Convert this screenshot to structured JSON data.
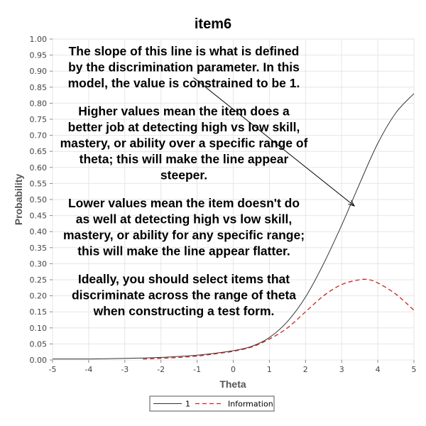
{
  "chart_data": {
    "type": "line",
    "title": "item6",
    "xlabel": "Theta",
    "ylabel": "Probability",
    "xlim": [
      -5,
      5
    ],
    "ylim": [
      0,
      1
    ],
    "x_ticks": [
      -5,
      -4,
      -3,
      -2,
      -1,
      0,
      1,
      2,
      3,
      4,
      5
    ],
    "y_ticks": [
      "0.00",
      "0.05",
      "0.10",
      "0.15",
      "0.20",
      "0.25",
      "0.30",
      "0.35",
      "0.40",
      "0.45",
      "0.50",
      "0.55",
      "0.60",
      "0.65",
      "0.70",
      "0.75",
      "0.80",
      "0.85",
      "0.90",
      "0.95",
      "1.00"
    ],
    "grid": true,
    "legend_position": "bottom",
    "series": [
      {
        "name": "1",
        "color": "#333333",
        "style": "solid",
        "x": [
          -5,
          -4.5,
          -4,
          -3.5,
          -3,
          -2.5,
          -2,
          -1.5,
          -1,
          -0.5,
          0,
          0.5,
          1,
          1.5,
          2,
          2.5,
          3,
          3.5,
          4,
          4.5,
          5
        ],
        "values": [
          0.003,
          0.003,
          0.003,
          0.004,
          0.005,
          0.006,
          0.008,
          0.011,
          0.015,
          0.021,
          0.029,
          0.042,
          0.07,
          0.12,
          0.196,
          0.3,
          0.42,
          0.55,
          0.675,
          0.77,
          0.83
        ]
      },
      {
        "name": "Information",
        "color": "#cc2222",
        "style": "dashed",
        "x": [
          -2.5,
          -2,
          -1.5,
          -1,
          -0.5,
          0,
          0.5,
          1,
          1.5,
          2,
          2.5,
          3,
          3.5,
          3.75,
          4,
          4.5,
          5
        ],
        "values": [
          0.003,
          0.005,
          0.008,
          0.012,
          0.019,
          0.027,
          0.04,
          0.065,
          0.1,
          0.15,
          0.2,
          0.235,
          0.25,
          0.25,
          0.24,
          0.205,
          0.155
        ]
      }
    ],
    "annotation": {
      "paragraphs": [
        [
          "The slope of this line is what is defined",
          "by the discrimination parameter.  In this",
          "model, the value is constrained to be 1."
        ],
        [
          "Higher values mean the item does a",
          "better job at detecting high vs low skill,",
          "mastery, or ability over a specific range of",
          "theta; this will make the line appear",
          "steeper."
        ],
        [
          "Lower values mean the item doesn't do",
          "as well at detecting high vs low skill,",
          "mastery, or ability for any specific range;",
          "this will make the line appear flatter."
        ],
        [
          "Ideally, you should select items that",
          "discriminate across the range of theta",
          "when constructing a test form."
        ]
      ],
      "arrow_from": [
        -1.1,
        0.88
      ],
      "arrow_to": [
        3.35,
        0.48
      ]
    }
  }
}
